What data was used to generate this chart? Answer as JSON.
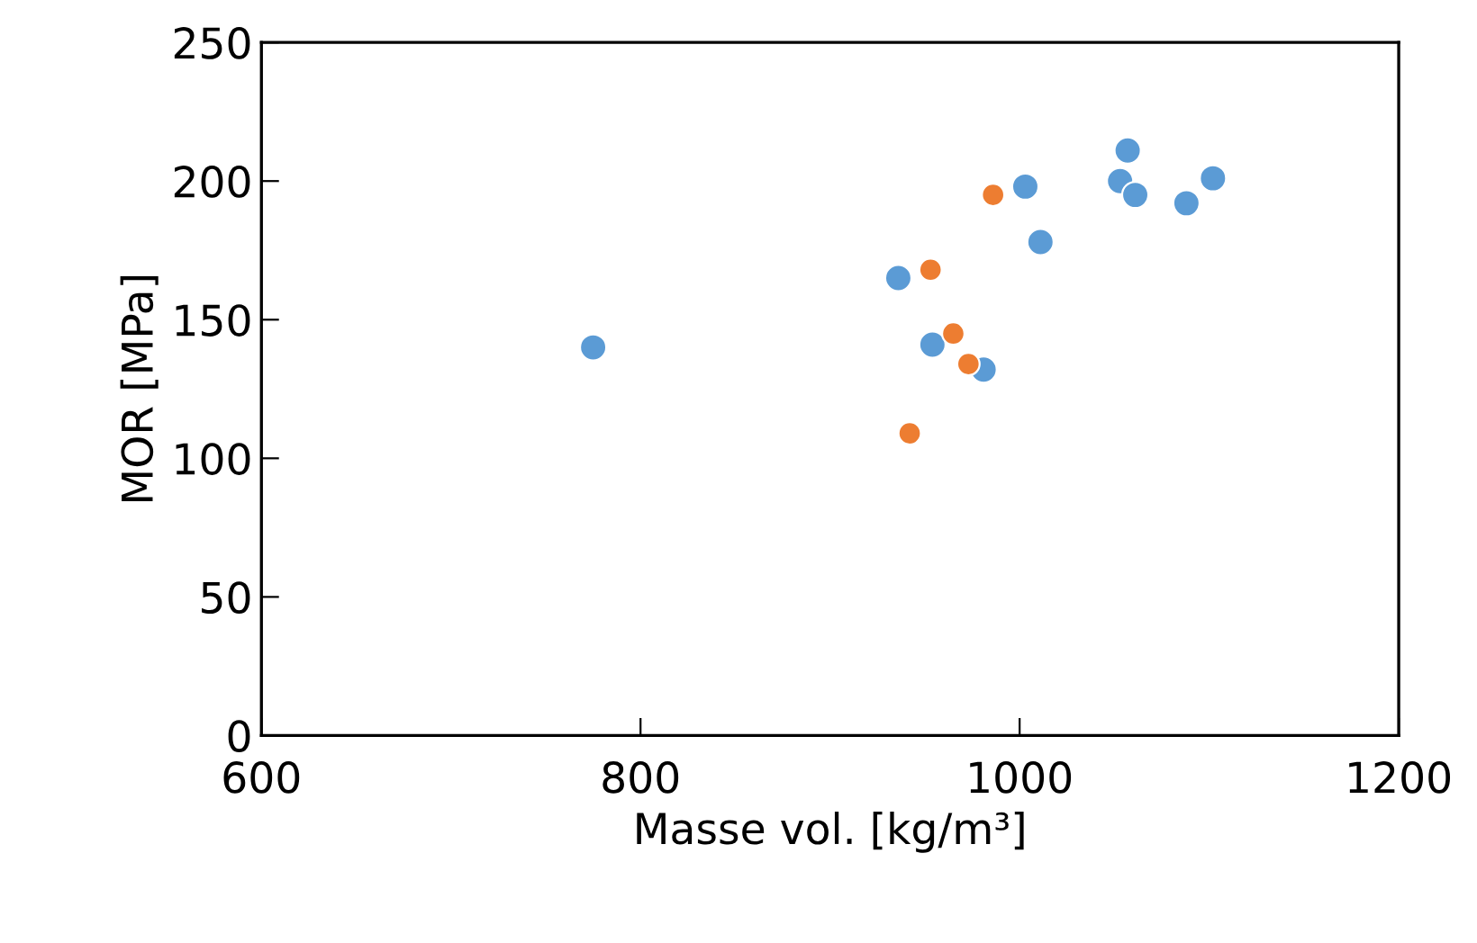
{
  "chart_data": {
    "type": "scatter",
    "xlabel": "Masse vol. [kg/m³]",
    "ylabel": "MOR [MPa]",
    "xlim": [
      600,
      1200
    ],
    "xticks": [
      600,
      800,
      1000,
      1200
    ],
    "ylim": [
      0,
      250
    ],
    "yticks": [
      0,
      50,
      100,
      150,
      200,
      250
    ],
    "grid": false,
    "marker": "circle",
    "series": [
      {
        "color": "#5b9bd5",
        "x": [
          775,
          936,
          954,
          981,
          1003,
          1011,
          1053,
          1057,
          1061,
          1088,
          1102
        ],
        "values": [
          140,
          165,
          141,
          132,
          198,
          178,
          200,
          211,
          195,
          192,
          201
        ]
      },
      {
        "color": "#ed7d31",
        "x": [
          986,
          953,
          965,
          973,
          942
        ],
        "values": [
          195,
          168,
          145,
          134,
          109
        ]
      }
    ]
  }
}
